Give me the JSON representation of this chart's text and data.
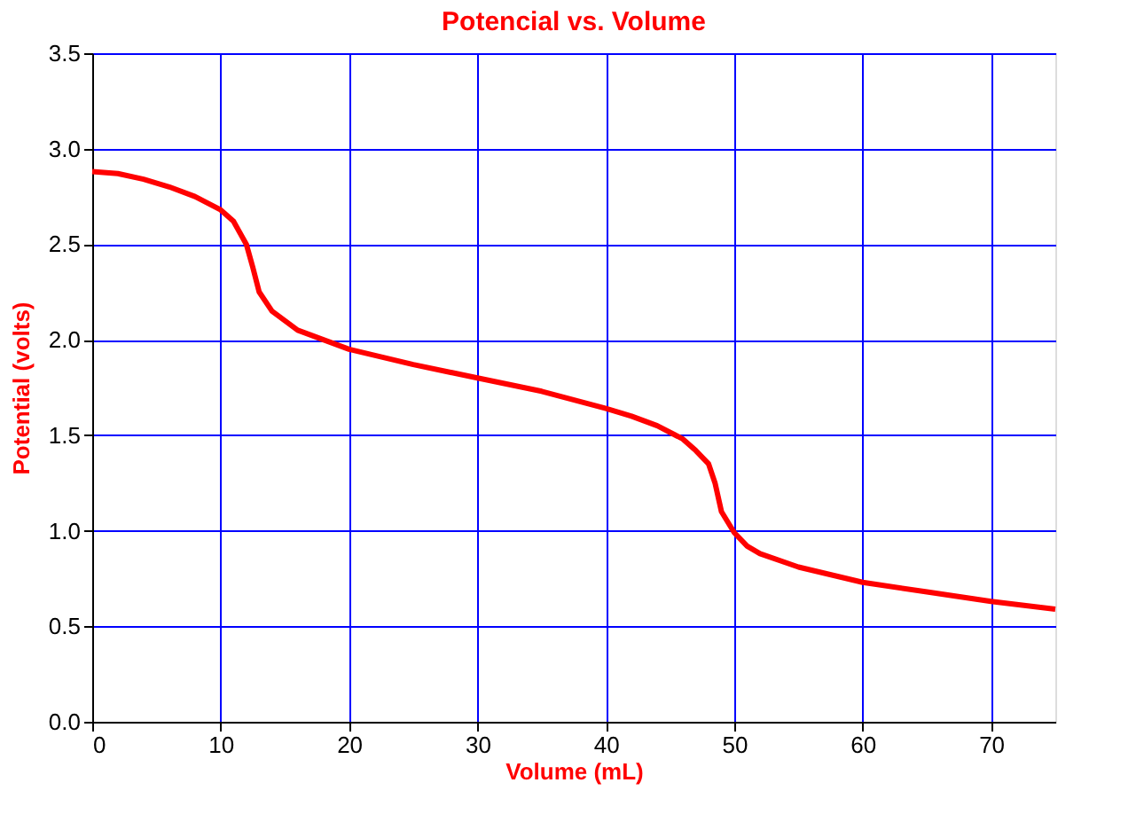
{
  "chart_data": {
    "type": "line",
    "title": "Potencial vs. Volume",
    "xlabel": "Volume (mL)",
    "ylabel": "Potential (volts)",
    "x": [
      0,
      2,
      4,
      6,
      8,
      10,
      11,
      12,
      12.5,
      13,
      14,
      15,
      16,
      18,
      20,
      25,
      30,
      35,
      40,
      42,
      44,
      46,
      47,
      48,
      48.5,
      49,
      50,
      51,
      52,
      55,
      60,
      65,
      70,
      75
    ],
    "series": [
      {
        "color": "#ff0000",
        "values": [
          2.88,
          2.87,
          2.84,
          2.8,
          2.75,
          2.68,
          2.62,
          2.5,
          2.38,
          2.25,
          2.15,
          2.1,
          2.05,
          2.0,
          1.95,
          1.87,
          1.8,
          1.73,
          1.64,
          1.6,
          1.55,
          1.48,
          1.42,
          1.35,
          1.25,
          1.1,
          0.99,
          0.92,
          0.88,
          0.81,
          0.73,
          0.68,
          0.63,
          0.59
        ]
      }
    ],
    "xlim": [
      0,
      75
    ],
    "xticks": [
      0,
      10,
      20,
      30,
      40,
      50,
      60,
      70
    ],
    "ylim": [
      0,
      3.5
    ],
    "yticks": [
      {
        "value": 0,
        "label": "0.0"
      },
      0.5,
      {
        "value": 1,
        "label": "1.0"
      },
      1.5,
      {
        "value": 2,
        "label": "2.0"
      },
      2.5,
      {
        "value": 3,
        "label": "3.0"
      },
      3.5
    ],
    "grid": true,
    "marker": "none",
    "line_style": "solid"
  }
}
